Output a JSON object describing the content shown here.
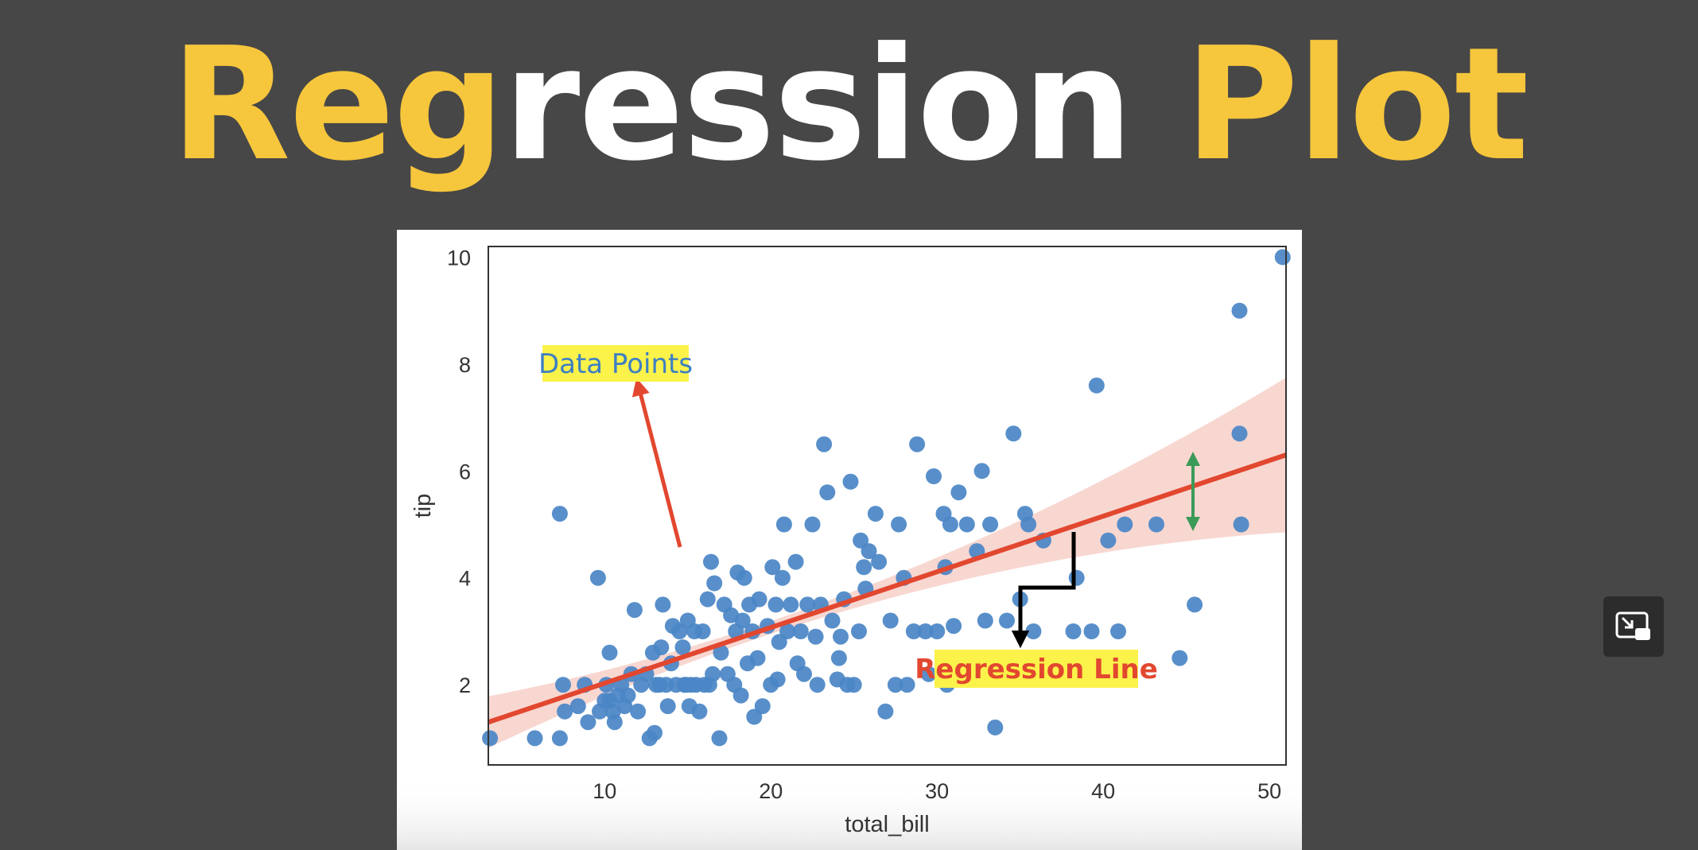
{
  "title": {
    "part1": "Reg",
    "part2": "ression",
    "part3": " Plot"
  },
  "colors": {
    "accent_yellow": "#f6c63c",
    "point": "#4a86c5",
    "regression": "#e2472f",
    "band": "#f6c9c2",
    "highlight": "#fbf24a",
    "green_arrow": "#3c9a58"
  },
  "pip_button": {
    "icon": "picture-in-picture-icon"
  },
  "chart_data": {
    "type": "scatter",
    "xlabel": "total_bill",
    "ylabel": "tip",
    "xlim": [
      3,
      51
    ],
    "ylim": [
      0.5,
      10.2
    ],
    "xticks": [
      10,
      20,
      30,
      40,
      50
    ],
    "yticks": [
      2,
      4,
      6,
      8,
      10
    ],
    "grid": false,
    "points": [
      [
        3.1,
        1.0
      ],
      [
        5.8,
        1.0
      ],
      [
        7.3,
        1.0
      ],
      [
        7.3,
        5.2
      ],
      [
        7.5,
        2.0
      ],
      [
        7.6,
        1.5
      ],
      [
        8.4,
        1.6
      ],
      [
        8.8,
        2.0
      ],
      [
        9.0,
        1.3
      ],
      [
        9.6,
        4.0
      ],
      [
        9.7,
        1.5
      ],
      [
        10.0,
        1.7
      ],
      [
        10.1,
        2.0
      ],
      [
        10.3,
        1.7
      ],
      [
        10.3,
        2.6
      ],
      [
        10.5,
        1.5
      ],
      [
        10.6,
        1.3
      ],
      [
        10.8,
        1.8
      ],
      [
        11.0,
        2.0
      ],
      [
        11.2,
        1.6
      ],
      [
        11.4,
        1.8
      ],
      [
        11.6,
        2.2
      ],
      [
        11.8,
        3.4
      ],
      [
        12.0,
        1.5
      ],
      [
        12.2,
        2.0
      ],
      [
        12.5,
        2.2
      ],
      [
        12.7,
        1.0
      ],
      [
        12.9,
        2.6
      ],
      [
        13.0,
        1.1
      ],
      [
        13.1,
        2.0
      ],
      [
        13.3,
        2.0
      ],
      [
        13.4,
        2.7
      ],
      [
        13.5,
        3.5
      ],
      [
        13.7,
        2.0
      ],
      [
        13.8,
        1.6
      ],
      [
        14.0,
        2.4
      ],
      [
        14.1,
        3.1
      ],
      [
        14.3,
        2.0
      ],
      [
        14.5,
        3.0
      ],
      [
        14.7,
        2.7
      ],
      [
        14.8,
        2.0
      ],
      [
        14.9,
        2.0
      ],
      [
        15.0,
        3.2
      ],
      [
        15.1,
        1.6
      ],
      [
        15.2,
        2.0
      ],
      [
        15.4,
        3.0
      ],
      [
        15.5,
        2.0
      ],
      [
        15.7,
        1.5
      ],
      [
        15.9,
        3.0
      ],
      [
        16.0,
        2.0
      ],
      [
        16.2,
        3.6
      ],
      [
        16.3,
        2.0
      ],
      [
        16.4,
        4.3
      ],
      [
        16.5,
        2.2
      ],
      [
        16.6,
        3.9
      ],
      [
        16.9,
        1.0
      ],
      [
        17.0,
        2.6
      ],
      [
        17.2,
        3.5
      ],
      [
        17.4,
        2.2
      ],
      [
        17.6,
        3.3
      ],
      [
        17.8,
        2.0
      ],
      [
        17.9,
        3.0
      ],
      [
        18.0,
        4.1
      ],
      [
        18.2,
        1.8
      ],
      [
        18.3,
        3.2
      ],
      [
        18.4,
        4.0
      ],
      [
        18.6,
        2.4
      ],
      [
        18.7,
        3.5
      ],
      [
        18.9,
        3.0
      ],
      [
        19.0,
        1.4
      ],
      [
        19.2,
        2.5
      ],
      [
        19.3,
        3.6
      ],
      [
        19.5,
        1.6
      ],
      [
        19.8,
        3.1
      ],
      [
        20.0,
        2.0
      ],
      [
        20.1,
        4.2
      ],
      [
        20.3,
        3.5
      ],
      [
        20.4,
        2.1
      ],
      [
        20.5,
        2.8
      ],
      [
        20.7,
        4.0
      ],
      [
        20.8,
        5.0
      ],
      [
        21.0,
        3.0
      ],
      [
        21.2,
        3.5
      ],
      [
        21.5,
        4.3
      ],
      [
        21.6,
        2.4
      ],
      [
        21.8,
        3.0
      ],
      [
        22.0,
        2.2
      ],
      [
        22.2,
        3.5
      ],
      [
        22.5,
        5.0
      ],
      [
        22.7,
        2.9
      ],
      [
        22.8,
        2.0
      ],
      [
        23.0,
        3.5
      ],
      [
        23.2,
        6.5
      ],
      [
        23.4,
        5.6
      ],
      [
        23.7,
        3.2
      ],
      [
        24.0,
        2.1
      ],
      [
        24.1,
        2.5
      ],
      [
        24.2,
        2.9
      ],
      [
        24.4,
        3.6
      ],
      [
        24.6,
        2.0
      ],
      [
        24.8,
        5.8
      ],
      [
        25.0,
        2.0
      ],
      [
        25.3,
        3.0
      ],
      [
        25.4,
        4.7
      ],
      [
        25.6,
        4.2
      ],
      [
        25.7,
        3.8
      ],
      [
        25.9,
        4.5
      ],
      [
        26.3,
        5.2
      ],
      [
        26.5,
        4.3
      ],
      [
        26.9,
        1.5
      ],
      [
        27.2,
        3.2
      ],
      [
        27.5,
        2.0
      ],
      [
        27.7,
        5.0
      ],
      [
        28.0,
        4.0
      ],
      [
        28.2,
        2.0
      ],
      [
        28.6,
        3.0
      ],
      [
        28.8,
        6.5
      ],
      [
        29.3,
        3.0
      ],
      [
        29.5,
        2.2
      ],
      [
        29.8,
        5.9
      ],
      [
        30.0,
        3.0
      ],
      [
        30.4,
        5.2
      ],
      [
        30.5,
        4.2
      ],
      [
        30.6,
        2.0
      ],
      [
        30.8,
        5.0
      ],
      [
        31.0,
        3.1
      ],
      [
        31.3,
        5.6
      ],
      [
        31.8,
        5.0
      ],
      [
        32.2,
        2.2
      ],
      [
        32.4,
        4.5
      ],
      [
        32.7,
        6.0
      ],
      [
        32.9,
        3.2
      ],
      [
        33.2,
        5.0
      ],
      [
        33.5,
        1.2
      ],
      [
        34.2,
        3.2
      ],
      [
        34.6,
        6.7
      ],
      [
        35.0,
        3.6
      ],
      [
        35.3,
        5.2
      ],
      [
        35.5,
        5.0
      ],
      [
        35.8,
        3.0
      ],
      [
        36.4,
        4.7
      ],
      [
        38.2,
        3.0
      ],
      [
        38.4,
        4.0
      ],
      [
        39.3,
        3.0
      ],
      [
        39.6,
        7.6
      ],
      [
        40.3,
        4.7
      ],
      [
        40.9,
        3.0
      ],
      [
        41.3,
        5.0
      ],
      [
        43.2,
        5.0
      ],
      [
        44.6,
        2.5
      ],
      [
        45.5,
        3.5
      ],
      [
        48.2,
        6.7
      ],
      [
        48.2,
        9.0
      ],
      [
        48.3,
        5.0
      ],
      [
        50.8,
        10.0
      ]
    ],
    "regression": {
      "x": [
        3,
        51
      ],
      "y": [
        1.3,
        6.3
      ]
    },
    "annotations": [
      "Data Points",
      "Regression Line"
    ]
  }
}
